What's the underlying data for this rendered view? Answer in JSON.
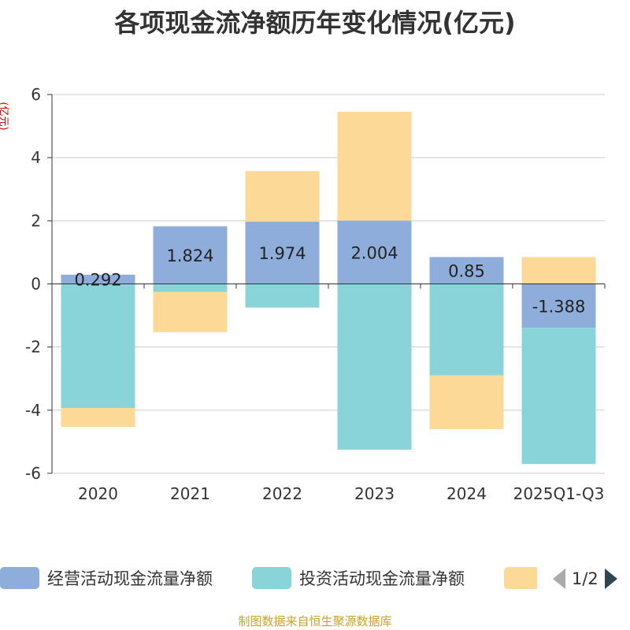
{
  "title": "各项现金流净额历年变化情况(亿元)",
  "source": "制图数据来自恒生聚源数据库",
  "legend": {
    "page": "1/2",
    "items": [
      {
        "label": "经营活动现金流量净额",
        "color": "#8eaddb"
      },
      {
        "label": "投资活动现金流量净额",
        "color": "#88d4d8"
      },
      {
        "label": "",
        "color": "#fdd998"
      }
    ]
  },
  "chart_data": {
    "type": "bar",
    "stacked": true,
    "title": "各项现金流净额历年变化情况(亿元)",
    "ylabel": "(亿元)",
    "xlabel": "",
    "ylim": [
      -6,
      6
    ],
    "yticks": [
      6,
      4,
      2,
      0,
      -2,
      -4,
      -6
    ],
    "categories": [
      "2020",
      "2021",
      "2022",
      "2023",
      "2024",
      "2025Q1-Q3"
    ],
    "data_labels": [
      "0.292",
      "1.824",
      "1.974",
      "2.004",
      "0.85",
      "-1.388"
    ],
    "series": [
      {
        "name": "经营活动现金流量净额",
        "color": "#8eaddb",
        "values": [
          0.292,
          1.824,
          1.974,
          2.004,
          0.85,
          -1.388
        ]
      },
      {
        "name": "投资活动现金流量净额",
        "color": "#88d4d8",
        "values": [
          -3.93,
          -0.25,
          -0.75,
          -5.25,
          -2.9,
          -4.32
        ]
      },
      {
        "name": "",
        "color": "#fdd998",
        "values": [
          -0.6,
          -1.28,
          1.6,
          3.45,
          -1.7,
          0.85
        ]
      }
    ]
  }
}
